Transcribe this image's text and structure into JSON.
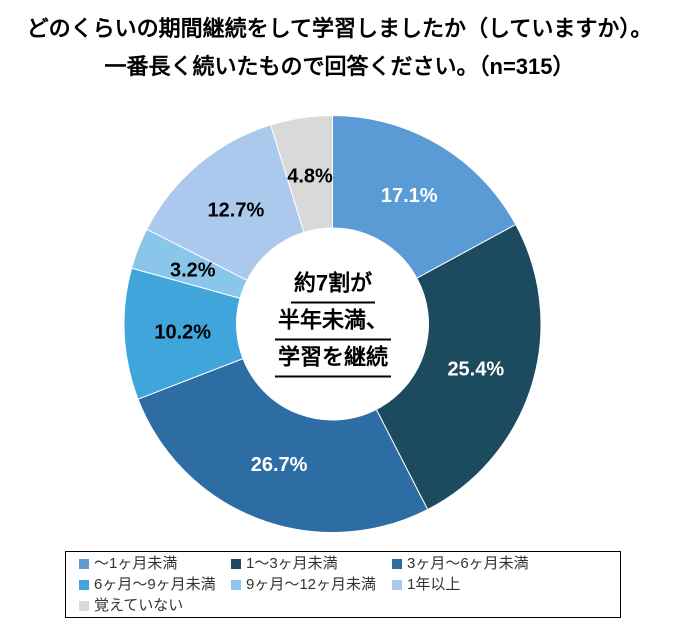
{
  "title": {
    "line1": "どのくらいの期間継続をして学習しましたか（していますか）。",
    "line2": "一番長く続いたもので回答ください。（n=315）"
  },
  "center_note": {
    "line1": "約7割が",
    "line2": "半年未満、",
    "line3": "学習を継続"
  },
  "chart_data": {
    "type": "pie",
    "subtype": "donut",
    "title": "どのくらいの期間継続をして学習しましたか（していますか）。一番長く続いたもので回答ください。（n=315）",
    "sample_size": 315,
    "start_angle_deg": 0,
    "direction": "clockwise",
    "categories": [
      "～1ヶ月未満",
      "1～3ヶ月未満",
      "3ヶ月～6ヶ月未満",
      "6ヶ月～9ヶ月未満",
      "9ヶ月～12ヶ月未満",
      "1年以上",
      "覚えていない"
    ],
    "values": [
      17.1,
      25.4,
      26.7,
      10.2,
      3.2,
      12.7,
      4.8
    ],
    "labels": [
      "17.1%",
      "25.4%",
      "26.7%",
      "10.2%",
      "3.2%",
      "12.7%",
      "4.8%"
    ],
    "colors": [
      "#5B9BD5",
      "#1C4A5F",
      "#2E6DA4",
      "#3FA5DB",
      "#8AC6E9",
      "#ABC9EC",
      "#D9D9D9"
    ],
    "label_colors": [
      "#FFFFFF",
      "#FFFFFF",
      "#FFFFFF",
      "#000000",
      "#000000",
      "#000000",
      "#000000"
    ],
    "center_annotation": "約7割が半年未満、学習を継続",
    "legend_position": "bottom",
    "legend_columns": 3
  }
}
